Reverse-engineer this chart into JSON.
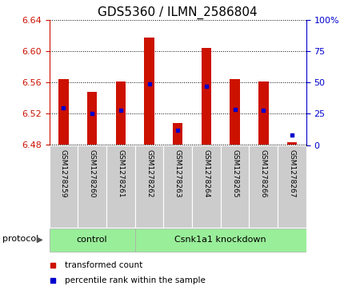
{
  "title": "GDS5360 / ILMN_2586804",
  "samples": [
    "GSM1278259",
    "GSM1278260",
    "GSM1278261",
    "GSM1278262",
    "GSM1278263",
    "GSM1278264",
    "GSM1278265",
    "GSM1278266",
    "GSM1278267"
  ],
  "red_values": [
    6.565,
    6.548,
    6.562,
    6.618,
    6.508,
    6.605,
    6.565,
    6.562,
    6.484
  ],
  "blue_values": [
    6.528,
    6.521,
    6.525,
    6.558,
    6.499,
    6.555,
    6.526,
    6.525,
    6.493
  ],
  "baseline": 6.48,
  "ylim_left": [
    6.48,
    6.64
  ],
  "yticks_left": [
    6.48,
    6.52,
    6.56,
    6.6,
    6.64
  ],
  "ylim_right": [
    0,
    100
  ],
  "yticks_right": [
    0,
    25,
    50,
    75,
    100
  ],
  "yticklabels_right": [
    "0",
    "25",
    "50",
    "75",
    "100%"
  ],
  "bar_color": "#cc1100",
  "marker_color": "#0000cc",
  "control_count": 3,
  "knockdown_count": 6,
  "control_label": "control",
  "knockdown_label": "Csnk1a1 knockdown",
  "protocol_label": "protocol",
  "legend1": "transformed count",
  "legend2": "percentile rank within the sample",
  "bar_width": 0.35,
  "group_bg_color": "#99ee99",
  "sample_bg_color": "#cccccc",
  "title_fontsize": 11,
  "tick_fontsize": 8,
  "bar_edge_color": "none"
}
